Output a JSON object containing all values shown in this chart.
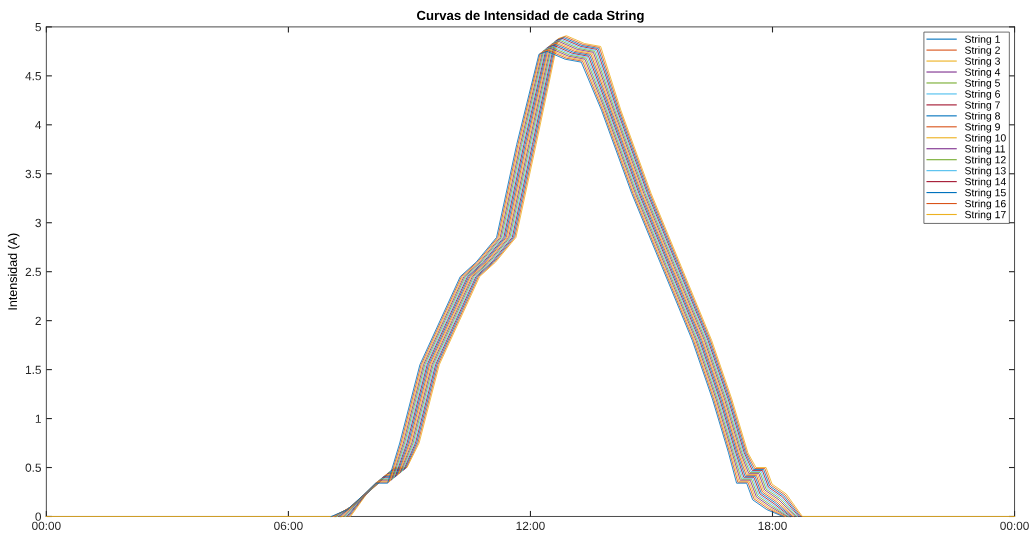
{
  "chart_data": {
    "type": "line",
    "title": "Curvas de Intensidad de cada String",
    "ylabel": "Intensidad (A)",
    "xlim": [
      0,
      24
    ],
    "xticks": [
      {
        "value": 0,
        "label": "00:00"
      },
      {
        "value": 6,
        "label": "06:00"
      },
      {
        "value": 12,
        "label": "12:00"
      },
      {
        "value": 18,
        "label": "18:00"
      },
      {
        "value": 24,
        "label": "00:00"
      }
    ],
    "ylim": [
      0,
      5
    ],
    "yticks": [
      0,
      0.5,
      1,
      1.5,
      2,
      2.5,
      3,
      3.5,
      4,
      4.5,
      5
    ],
    "grid": false,
    "legend": "top right",
    "marker": "none",
    "line_style": "solid",
    "series": [
      {
        "name": "String 1",
        "color": "#0072bd",
        "x": [
          7.06,
          7.46,
          7.86,
          8.16,
          8.46,
          8.76,
          9.26,
          9.76,
          10.26,
          10.66,
          11.16,
          11.66,
          12.21,
          12.41,
          12.86,
          13.26,
          13.76,
          14.51,
          15.26,
          16.01,
          16.51,
          16.91,
          17.11,
          17.36,
          17.51,
          17.86,
          18.26
        ],
        "values": [
          0,
          0.07,
          0.22,
          0.34,
          0.34,
          0.75,
          1.55,
          2.0,
          2.45,
          2.6,
          2.85,
          3.8,
          4.72,
          4.75,
          4.67,
          4.64,
          4.15,
          3.3,
          2.55,
          1.8,
          1.2,
          0.65,
          0.34,
          0.34,
          0.17,
          0.07,
          0
        ]
      },
      {
        "name": "String 2",
        "color": "#d95319",
        "x": [
          7.09,
          7.49,
          7.89,
          8.19,
          8.49,
          8.79,
          9.29,
          9.79,
          10.29,
          10.69,
          11.19,
          11.69,
          12.24,
          12.44,
          12.89,
          13.29,
          13.79,
          14.54,
          15.29,
          16.04,
          16.54,
          16.94,
          17.14,
          17.39,
          17.54,
          17.89,
          18.29
        ],
        "values": [
          0,
          0.08,
          0.23,
          0.35,
          0.35,
          0.75,
          1.55,
          2.0,
          2.45,
          2.6,
          2.85,
          3.8,
          4.73,
          4.76,
          4.68,
          4.65,
          4.15,
          3.3,
          2.55,
          1.8,
          1.2,
          0.65,
          0.35,
          0.35,
          0.18,
          0.08,
          0
        ]
      },
      {
        "name": "String 3",
        "color": "#edb120",
        "x": [
          7.12,
          7.52,
          7.92,
          8.22,
          8.52,
          8.82,
          9.32,
          9.82,
          10.32,
          10.72,
          11.22,
          11.72,
          12.27,
          12.47,
          12.92,
          13.32,
          13.82,
          14.57,
          15.32,
          16.07,
          16.57,
          16.97,
          17.17,
          17.42,
          17.57,
          17.92,
          18.32
        ],
        "values": [
          0,
          0.09,
          0.24,
          0.36,
          0.36,
          0.75,
          1.55,
          2.0,
          2.45,
          2.6,
          2.85,
          3.8,
          4.74,
          4.77,
          4.69,
          4.66,
          4.15,
          3.3,
          2.55,
          1.8,
          1.2,
          0.65,
          0.36,
          0.36,
          0.19,
          0.09,
          0
        ]
      },
      {
        "name": "String 4",
        "color": "#7e2f8e",
        "x": [
          7.15,
          7.55,
          7.95,
          8.25,
          8.55,
          8.85,
          9.35,
          9.85,
          10.35,
          10.75,
          11.25,
          11.75,
          12.3,
          12.5,
          12.95,
          13.35,
          13.85,
          14.6,
          15.35,
          16.1,
          16.6,
          17.0,
          17.2,
          17.45,
          17.6,
          17.95,
          18.35
        ],
        "values": [
          0,
          0.1,
          0.25,
          0.37,
          0.37,
          0.75,
          1.55,
          2.0,
          2.45,
          2.6,
          2.85,
          3.8,
          4.75,
          4.78,
          4.7,
          4.67,
          4.15,
          3.3,
          2.55,
          1.8,
          1.2,
          0.65,
          0.37,
          0.37,
          0.2,
          0.1,
          0
        ]
      },
      {
        "name": "String 5",
        "color": "#77ac30",
        "x": [
          7.18,
          7.58,
          7.98,
          8.28,
          8.58,
          8.88,
          9.38,
          9.88,
          10.38,
          10.78,
          11.28,
          11.78,
          12.33,
          12.53,
          12.98,
          13.38,
          13.88,
          14.63,
          15.38,
          16.13,
          16.63,
          17.03,
          17.23,
          17.48,
          17.63,
          17.98,
          18.38
        ],
        "values": [
          0,
          0.11,
          0.26,
          0.38,
          0.38,
          0.75,
          1.55,
          2.0,
          2.45,
          2.6,
          2.85,
          3.8,
          4.76,
          4.79,
          4.71,
          4.68,
          4.15,
          3.3,
          2.55,
          1.8,
          1.2,
          0.65,
          0.38,
          0.38,
          0.21,
          0.11,
          0
        ]
      },
      {
        "name": "String 6",
        "color": "#4dbeee",
        "x": [
          7.21,
          7.61,
          8.01,
          8.31,
          8.61,
          8.91,
          9.41,
          9.91,
          10.41,
          10.81,
          11.31,
          11.81,
          12.36,
          12.56,
          13.01,
          13.41,
          13.91,
          14.66,
          15.41,
          16.16,
          16.66,
          17.06,
          17.26,
          17.51,
          17.66,
          18.01,
          18.41
        ],
        "values": [
          0,
          0.12,
          0.27,
          0.39,
          0.39,
          0.75,
          1.55,
          2.0,
          2.45,
          2.6,
          2.85,
          3.8,
          4.77,
          4.8,
          4.72,
          4.69,
          4.15,
          3.3,
          2.55,
          1.8,
          1.2,
          0.65,
          0.39,
          0.39,
          0.22,
          0.12,
          0
        ]
      },
      {
        "name": "String 7",
        "color": "#a2142f",
        "x": [
          7.24,
          7.64,
          8.04,
          8.34,
          8.64,
          8.94,
          9.44,
          9.94,
          10.44,
          10.84,
          11.34,
          11.84,
          12.39,
          12.59,
          13.04,
          13.44,
          13.94,
          14.69,
          15.44,
          16.19,
          16.69,
          17.09,
          17.29,
          17.54,
          17.69,
          18.04,
          18.44
        ],
        "values": [
          0,
          0.13,
          0.28,
          0.4,
          0.4,
          0.75,
          1.55,
          2.0,
          2.45,
          2.6,
          2.85,
          3.8,
          4.78,
          4.81,
          4.73,
          4.7,
          4.15,
          3.3,
          2.55,
          1.8,
          1.2,
          0.65,
          0.4,
          0.4,
          0.23,
          0.13,
          0
        ]
      },
      {
        "name": "String 8",
        "color": "#0072bd",
        "x": [
          7.27,
          7.67,
          8.07,
          8.37,
          8.67,
          8.97,
          9.47,
          9.97,
          10.47,
          10.87,
          11.37,
          11.87,
          12.42,
          12.62,
          13.07,
          13.47,
          13.97,
          14.72,
          15.47,
          16.22,
          16.72,
          17.12,
          17.32,
          17.57,
          17.72,
          18.07,
          18.47
        ],
        "values": [
          0,
          0.14,
          0.29,
          0.41,
          0.41,
          0.75,
          1.55,
          2.0,
          2.45,
          2.6,
          2.85,
          3.8,
          4.79,
          4.82,
          4.74,
          4.71,
          4.15,
          3.3,
          2.55,
          1.8,
          1.2,
          0.65,
          0.41,
          0.41,
          0.24,
          0.14,
          0
        ]
      },
      {
        "name": "String 9",
        "color": "#d95319",
        "x": [
          7.3,
          7.7,
          8.1,
          8.4,
          8.7,
          9.0,
          9.5,
          10.0,
          10.5,
          10.9,
          11.4,
          11.9,
          12.45,
          12.65,
          13.1,
          13.5,
          14.0,
          14.75,
          15.5,
          16.25,
          16.75,
          17.15,
          17.35,
          17.6,
          17.75,
          18.1,
          18.5
        ],
        "values": [
          0,
          0.15,
          0.3,
          0.42,
          0.42,
          0.75,
          1.55,
          2.0,
          2.45,
          2.6,
          2.85,
          3.8,
          4.8,
          4.83,
          4.75,
          4.72,
          4.15,
          3.3,
          2.55,
          1.8,
          1.2,
          0.65,
          0.42,
          0.42,
          0.25,
          0.15,
          0
        ]
      },
      {
        "name": "String 10",
        "color": "#edb120",
        "x": [
          7.33,
          7.73,
          8.13,
          8.43,
          8.73,
          9.03,
          9.53,
          10.03,
          10.53,
          10.93,
          11.43,
          11.93,
          12.48,
          12.68,
          13.13,
          13.53,
          14.03,
          14.78,
          15.53,
          16.28,
          16.78,
          17.18,
          17.38,
          17.63,
          17.78,
          18.13,
          18.53
        ],
        "values": [
          0,
          0.16,
          0.31,
          0.43,
          0.43,
          0.75,
          1.55,
          2.0,
          2.45,
          2.6,
          2.85,
          3.8,
          4.81,
          4.84,
          4.76,
          4.73,
          4.15,
          3.3,
          2.55,
          1.8,
          1.2,
          0.65,
          0.43,
          0.43,
          0.26,
          0.16,
          0
        ]
      },
      {
        "name": "String 11",
        "color": "#7e2f8e",
        "x": [
          7.36,
          7.76,
          8.16,
          8.46,
          8.76,
          9.06,
          9.56,
          10.06,
          10.56,
          10.96,
          11.46,
          11.96,
          12.51,
          12.71,
          13.16,
          13.56,
          14.06,
          14.81,
          15.56,
          16.31,
          16.81,
          17.21,
          17.41,
          17.66,
          17.81,
          18.16,
          18.56
        ],
        "values": [
          0,
          0.17,
          0.32,
          0.44,
          0.44,
          0.75,
          1.55,
          2.0,
          2.45,
          2.6,
          2.85,
          3.8,
          4.82,
          4.85,
          4.77,
          4.74,
          4.15,
          3.3,
          2.55,
          1.8,
          1.2,
          0.65,
          0.44,
          0.44,
          0.27,
          0.17,
          0
        ]
      },
      {
        "name": "String 12",
        "color": "#77ac30",
        "x": [
          7.39,
          7.79,
          8.19,
          8.49,
          8.79,
          9.09,
          9.59,
          10.09,
          10.59,
          10.99,
          11.49,
          11.99,
          12.54,
          12.74,
          13.19,
          13.59,
          14.09,
          14.84,
          15.59,
          16.34,
          16.84,
          17.24,
          17.44,
          17.69,
          17.84,
          18.19,
          18.59
        ],
        "values": [
          0,
          0.18,
          0.33,
          0.45,
          0.45,
          0.75,
          1.55,
          2.0,
          2.45,
          2.6,
          2.85,
          3.8,
          4.83,
          4.86,
          4.78,
          4.75,
          4.15,
          3.3,
          2.55,
          1.8,
          1.2,
          0.65,
          0.45,
          0.45,
          0.28,
          0.18,
          0
        ]
      },
      {
        "name": "String 13",
        "color": "#4dbeee",
        "x": [
          7.42,
          7.82,
          8.22,
          8.52,
          8.82,
          9.12,
          9.62,
          10.12,
          10.62,
          11.02,
          11.52,
          12.02,
          12.57,
          12.77,
          13.22,
          13.62,
          14.12,
          14.87,
          15.62,
          16.37,
          16.87,
          17.27,
          17.47,
          17.72,
          17.87,
          18.22,
          18.62
        ],
        "values": [
          0,
          0.19,
          0.34,
          0.46,
          0.46,
          0.75,
          1.55,
          2.0,
          2.45,
          2.6,
          2.85,
          3.8,
          4.84,
          4.87,
          4.79,
          4.76,
          4.15,
          3.3,
          2.55,
          1.8,
          1.2,
          0.65,
          0.46,
          0.46,
          0.29,
          0.19,
          0
        ]
      },
      {
        "name": "String 14",
        "color": "#a2142f",
        "x": [
          7.45,
          7.85,
          8.25,
          8.55,
          8.85,
          9.15,
          9.65,
          10.15,
          10.65,
          11.05,
          11.55,
          12.05,
          12.6,
          12.8,
          13.25,
          13.65,
          14.15,
          14.9,
          15.65,
          16.4,
          16.9,
          17.3,
          17.5,
          17.75,
          17.9,
          18.25,
          18.65
        ],
        "values": [
          0,
          0.2,
          0.35,
          0.47,
          0.47,
          0.75,
          1.55,
          2.0,
          2.45,
          2.6,
          2.85,
          3.8,
          4.85,
          4.88,
          4.8,
          4.77,
          4.15,
          3.3,
          2.55,
          1.8,
          1.2,
          0.65,
          0.47,
          0.47,
          0.3,
          0.2,
          0
        ]
      },
      {
        "name": "String 15",
        "color": "#0072bd",
        "x": [
          7.48,
          7.88,
          8.28,
          8.58,
          8.88,
          9.18,
          9.68,
          10.18,
          10.68,
          11.08,
          11.58,
          12.08,
          12.63,
          12.83,
          13.28,
          13.68,
          14.18,
          14.93,
          15.68,
          16.43,
          16.93,
          17.33,
          17.53,
          17.78,
          17.93,
          18.28,
          18.68
        ],
        "values": [
          0,
          0.21,
          0.36,
          0.48,
          0.48,
          0.75,
          1.55,
          2.0,
          2.45,
          2.6,
          2.85,
          3.8,
          4.86,
          4.89,
          4.81,
          4.78,
          4.15,
          3.3,
          2.55,
          1.8,
          1.2,
          0.65,
          0.48,
          0.48,
          0.31,
          0.21,
          0
        ]
      },
      {
        "name": "String 16",
        "color": "#d95319",
        "x": [
          7.51,
          7.91,
          8.31,
          8.61,
          8.91,
          9.21,
          9.71,
          10.21,
          10.71,
          11.11,
          11.61,
          12.11,
          12.66,
          12.86,
          13.31,
          13.71,
          14.21,
          14.96,
          15.71,
          16.46,
          16.96,
          17.36,
          17.56,
          17.81,
          17.96,
          18.31,
          18.71
        ],
        "values": [
          0,
          0.22,
          0.37,
          0.49,
          0.49,
          0.75,
          1.55,
          2.0,
          2.45,
          2.6,
          2.85,
          3.8,
          4.87,
          4.9,
          4.82,
          4.79,
          4.15,
          3.3,
          2.55,
          1.8,
          1.2,
          0.65,
          0.49,
          0.49,
          0.32,
          0.22,
          0
        ]
      },
      {
        "name": "String 17",
        "color": "#edb120",
        "x": [
          0,
          7.54,
          7.94,
          8.34,
          8.64,
          8.94,
          9.24,
          9.74,
          10.24,
          10.74,
          11.14,
          11.64,
          12.14,
          12.69,
          12.89,
          13.34,
          13.74,
          14.24,
          14.99,
          15.74,
          16.49,
          16.99,
          17.39,
          17.59,
          17.84,
          17.99,
          18.34,
          18.74,
          24
        ],
        "values": [
          0,
          0,
          0.23,
          0.38,
          0.5,
          0.5,
          0.75,
          1.55,
          2.0,
          2.45,
          2.6,
          2.85,
          3.8,
          4.88,
          4.91,
          4.83,
          4.8,
          4.15,
          3.3,
          2.55,
          1.8,
          1.2,
          0.65,
          0.5,
          0.5,
          0.33,
          0.23,
          0,
          0
        ]
      }
    ]
  }
}
